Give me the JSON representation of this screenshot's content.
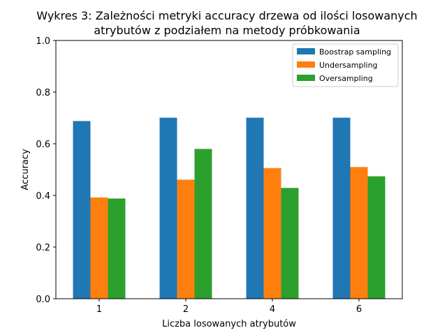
{
  "chart_data": {
    "type": "bar",
    "title_lines": [
      "Wykres 3: Zależności metryki accuracy drzewa od ilości losowanych",
      "atrybutów z podziałem na metody próbkowania"
    ],
    "xlabel": "Liczba losowanych atrybutów",
    "ylabel": "Accuracy",
    "categories": [
      "1",
      "2",
      "4",
      "6"
    ],
    "ylim": [
      0,
      1.0
    ],
    "yticks": [
      "0.0",
      "0.2",
      "0.4",
      "0.6",
      "0.8",
      "1.0"
    ],
    "grid": false,
    "legend_position": "top-right",
    "series": [
      {
        "name": "Boostrap sampling",
        "color": "#1f77b4",
        "values": [
          0.688,
          0.701,
          0.701,
          0.701
        ]
      },
      {
        "name": "Undersampling",
        "color": "#ff7f0e",
        "values": [
          0.392,
          0.461,
          0.506,
          0.51
        ]
      },
      {
        "name": "Oversampling",
        "color": "#2ca02c",
        "values": [
          0.388,
          0.58,
          0.429,
          0.474
        ]
      }
    ]
  }
}
